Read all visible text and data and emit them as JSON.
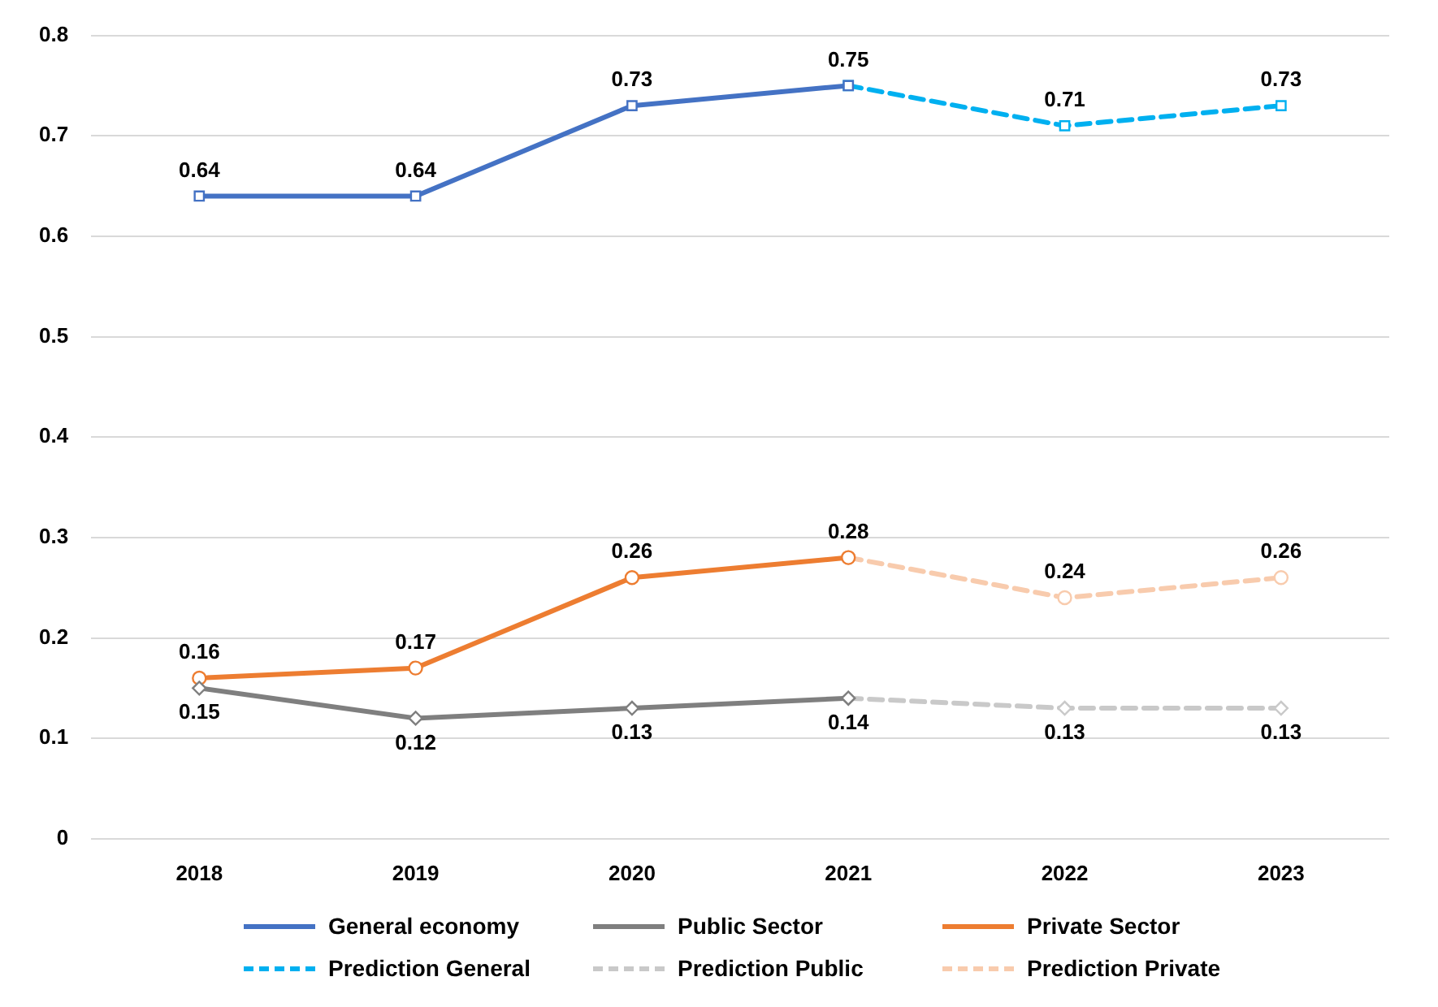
{
  "chart_data": {
    "type": "line",
    "categories": [
      "2018",
      "2019",
      "2020",
      "2021",
      "2022",
      "2023"
    ],
    "series": [
      {
        "name": "General economy",
        "color": "#4472c4",
        "marker": "square",
        "line_style": "solid",
        "values": [
          0.64,
          0.64,
          0.73,
          0.75,
          null,
          null
        ],
        "value_labels": [
          "0.64",
          "0.64",
          "0.73",
          "0.75",
          null,
          null
        ]
      },
      {
        "name": "Public Sector",
        "color": "#7f7f7f",
        "marker": "diamond",
        "line_style": "solid",
        "values": [
          0.15,
          0.12,
          0.13,
          0.14,
          null,
          null
        ],
        "value_labels": [
          "0.15",
          "0.12",
          "0.13",
          "0.14",
          null,
          null
        ]
      },
      {
        "name": "Private Sector",
        "color": "#ed7d31",
        "marker": "circle",
        "line_style": "solid",
        "values": [
          0.16,
          0.17,
          0.26,
          0.28,
          null,
          null
        ],
        "value_labels": [
          "0.16",
          "0.17",
          "0.26",
          "0.28",
          null,
          null
        ]
      },
      {
        "name": "Prediction General",
        "color": "#00b0f0",
        "marker": "square",
        "line_style": "dashed",
        "values": [
          null,
          null,
          null,
          0.75,
          0.71,
          0.73
        ],
        "value_labels": [
          null,
          null,
          null,
          null,
          "0.71",
          "0.73"
        ]
      },
      {
        "name": "Prediction Public",
        "color": "#c9c9c9",
        "marker": "diamond",
        "line_style": "dashed",
        "values": [
          null,
          null,
          null,
          0.14,
          0.13,
          0.13
        ],
        "value_labels": [
          null,
          null,
          null,
          null,
          "0.13",
          "0.13"
        ]
      },
      {
        "name": "Prediction Private",
        "color": "#f8cbad",
        "marker": "circle",
        "line_style": "dashed",
        "values": [
          null,
          null,
          null,
          0.28,
          0.24,
          0.26
        ],
        "value_labels": [
          null,
          null,
          null,
          null,
          "0.24",
          "0.26"
        ]
      }
    ],
    "ylim": [
      0,
      0.8
    ],
    "yticks": [
      0,
      0.1,
      0.2,
      0.3,
      0.4,
      0.5,
      0.6,
      0.7,
      0.8
    ],
    "grid": "y",
    "legend": "bottom"
  }
}
